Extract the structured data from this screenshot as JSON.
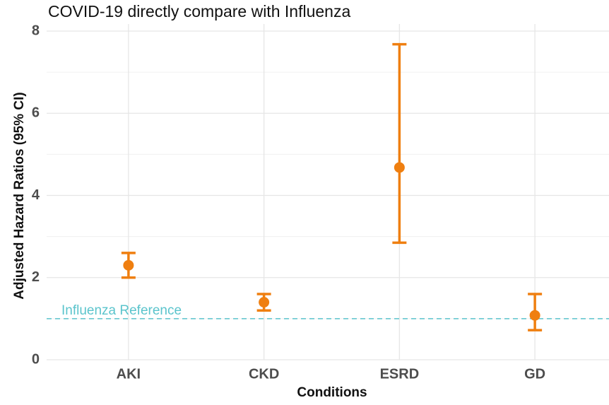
{
  "chart_data": {
    "type": "errorbar",
    "title": "COVID-19 directly compare with Influenza",
    "x_label": "Conditions",
    "y_label": "Adjusted Hazard Ratios (95% CI)",
    "categories": [
      "AKI",
      "CKD",
      "ESRD",
      "GD"
    ],
    "values": [
      2.3,
      1.4,
      4.68,
      1.08
    ],
    "lower": [
      2.0,
      1.2,
      2.85,
      0.72
    ],
    "upper": [
      2.6,
      1.6,
      7.68,
      1.6
    ],
    "color": "#ef7f10",
    "ylim": [
      0,
      8
    ],
    "yticks": [
      0,
      2,
      4,
      6,
      8
    ],
    "minor_yticks": [
      1,
      3,
      5,
      7
    ],
    "grid": true,
    "reference": {
      "value": 1,
      "label": "Influenza Reference",
      "color": "#5bc4cc"
    }
  }
}
